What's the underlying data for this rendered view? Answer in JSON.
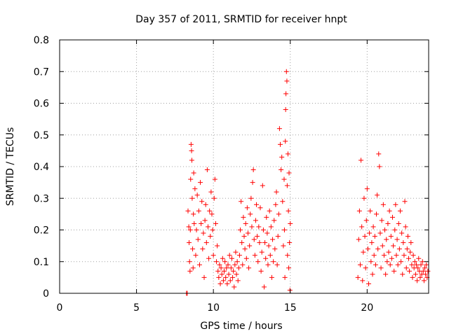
{
  "chart_data": {
    "type": "scatter",
    "title": "Day 357 of 2011, SRMTID for receiver hnpt",
    "xlabel": "GPS time / hours",
    "ylabel": "SRMTID / TECUs",
    "xlim": [
      0,
      24
    ],
    "ylim": [
      0,
      0.8
    ],
    "xticks": [
      0,
      5,
      10,
      15,
      20
    ],
    "xtick_labels": [
      "0",
      "5",
      "10",
      "15",
      "20"
    ],
    "yticks": [
      0,
      0.1,
      0.2,
      0.3,
      0.4,
      0.5,
      0.6,
      0.7,
      0.8
    ],
    "ytick_labels": [
      "0",
      "0.1",
      "0.2",
      "0.3",
      "0.4",
      "0.5",
      "0.6",
      "0.7",
      "0.8"
    ],
    "grid": true,
    "legend": false,
    "marker": "+",
    "color": "#ff0000",
    "series": [
      {
        "points": [
          [
            8.25,
            0.0
          ],
          [
            8.3,
            0.0
          ],
          [
            8.35,
            0.26
          ],
          [
            8.4,
            0.21
          ],
          [
            8.42,
            0.16
          ],
          [
            8.45,
            0.1
          ],
          [
            8.48,
            0.07
          ],
          [
            8.5,
            0.2
          ],
          [
            8.52,
            0.36
          ],
          [
            8.55,
            0.47
          ],
          [
            8.58,
            0.45
          ],
          [
            8.6,
            0.42
          ],
          [
            8.62,
            0.3
          ],
          [
            8.65,
            0.14
          ],
          [
            8.68,
            0.08
          ],
          [
            8.7,
            0.25
          ],
          [
            8.72,
            0.38
          ],
          [
            8.75,
            0.22
          ],
          [
            8.8,
            0.33
          ],
          [
            8.85,
            0.12
          ],
          [
            8.9,
            0.2
          ],
          [
            8.95,
            0.31
          ],
          [
            9.0,
            0.17
          ],
          [
            9.05,
            0.26
          ],
          [
            9.1,
            0.09
          ],
          [
            9.15,
            0.35
          ],
          [
            9.2,
            0.22
          ],
          [
            9.25,
            0.29
          ],
          [
            9.3,
            0.14
          ],
          [
            9.35,
            0.19
          ],
          [
            9.4,
            0.05
          ],
          [
            9.45,
            0.23
          ],
          [
            9.5,
            0.28
          ],
          [
            9.55,
            0.16
          ],
          [
            9.6,
            0.39
          ],
          [
            9.65,
            0.21
          ],
          [
            9.7,
            0.11
          ],
          [
            9.75,
            0.26
          ],
          [
            9.8,
            0.18
          ],
          [
            9.85,
            0.32
          ],
          [
            9.9,
            0.25
          ],
          [
            9.95,
            0.2
          ],
          [
            10.0,
            0.12
          ],
          [
            10.05,
            0.3
          ],
          [
            10.1,
            0.36
          ],
          [
            10.15,
            0.22
          ],
          [
            10.2,
            0.1
          ],
          [
            10.25,
            0.15
          ],
          [
            10.3,
            0.07
          ],
          [
            10.35,
            0.05
          ],
          [
            10.4,
            0.09
          ],
          [
            10.45,
            0.03
          ],
          [
            10.5,
            0.08
          ],
          [
            10.55,
            0.06
          ],
          [
            10.6,
            0.11
          ],
          [
            10.65,
            0.04
          ],
          [
            10.7,
            0.07
          ],
          [
            10.75,
            0.1
          ],
          [
            10.8,
            0.05
          ],
          [
            10.85,
            0.08
          ],
          [
            10.9,
            0.03
          ],
          [
            10.95,
            0.09
          ],
          [
            11.0,
            0.06
          ],
          [
            11.05,
            0.12
          ],
          [
            11.1,
            0.04
          ],
          [
            11.15,
            0.08
          ],
          [
            11.2,
            0.11
          ],
          [
            11.25,
            0.05
          ],
          [
            11.3,
            0.07
          ],
          [
            11.35,
            0.02
          ],
          [
            11.4,
            0.09
          ],
          [
            11.45,
            0.13
          ],
          [
            11.5,
            0.06
          ],
          [
            11.55,
            0.1
          ],
          [
            11.6,
            0.04
          ],
          [
            11.65,
            0.08
          ],
          [
            11.7,
            0.12
          ],
          [
            11.75,
            0.2
          ],
          [
            11.8,
            0.29
          ],
          [
            11.85,
            0.16
          ],
          [
            11.9,
            0.09
          ],
          [
            11.95,
            0.24
          ],
          [
            12.0,
            0.18
          ],
          [
            12.05,
            0.14
          ],
          [
            12.1,
            0.22
          ],
          [
            12.15,
            0.11
          ],
          [
            12.2,
            0.27
          ],
          [
            12.25,
            0.19
          ],
          [
            12.3,
            0.08
          ],
          [
            12.35,
            0.15
          ],
          [
            12.4,
            0.25
          ],
          [
            12.45,
            0.3
          ],
          [
            12.5,
            0.21
          ],
          [
            12.55,
            0.35
          ],
          [
            12.6,
            0.39
          ],
          [
            12.65,
            0.17
          ],
          [
            12.7,
            0.12
          ],
          [
            12.75,
            0.23
          ],
          [
            12.8,
            0.28
          ],
          [
            12.85,
            0.18
          ],
          [
            12.9,
            0.1
          ],
          [
            12.95,
            0.21
          ],
          [
            13.0,
            0.16
          ],
          [
            13.05,
            0.27
          ],
          [
            13.1,
            0.07
          ],
          [
            13.15,
            0.13
          ],
          [
            13.2,
            0.34
          ],
          [
            13.25,
            0.2
          ],
          [
            13.3,
            0.02
          ],
          [
            13.35,
            0.16
          ],
          [
            13.4,
            0.11
          ],
          [
            13.45,
            0.24
          ],
          [
            13.5,
            0.19
          ],
          [
            13.55,
            0.09
          ],
          [
            13.6,
            0.15
          ],
          [
            13.65,
            0.26
          ],
          [
            13.7,
            0.12
          ],
          [
            13.75,
            0.21
          ],
          [
            13.8,
            0.05
          ],
          [
            13.85,
            0.17
          ],
          [
            13.9,
            0.1
          ],
          [
            13.95,
            0.23
          ],
          [
            14.0,
            0.14
          ],
          [
            14.05,
            0.28
          ],
          [
            14.1,
            0.32
          ],
          [
            14.15,
            0.09
          ],
          [
            14.2,
            0.18
          ],
          [
            14.25,
            0.25
          ],
          [
            14.3,
            0.52
          ],
          [
            14.35,
            0.47
          ],
          [
            14.4,
            0.39
          ],
          [
            14.45,
            0.43
          ],
          [
            14.5,
            0.29
          ],
          [
            14.55,
            0.15
          ],
          [
            14.6,
            0.36
          ],
          [
            14.62,
            0.2
          ],
          [
            14.65,
            0.05
          ],
          [
            14.68,
            0.48
          ],
          [
            14.7,
            0.58
          ],
          [
            14.72,
            0.63
          ],
          [
            14.75,
            0.7
          ],
          [
            14.78,
            0.67
          ],
          [
            14.8,
            0.34
          ],
          [
            14.82,
            0.12
          ],
          [
            14.85,
            0.44
          ],
          [
            14.88,
            0.26
          ],
          [
            14.9,
            0.08
          ],
          [
            14.92,
            0.38
          ],
          [
            14.95,
            0.16
          ],
          [
            14.98,
            0.01
          ],
          [
            15.0,
            0.22
          ],
          [
            19.4,
            0.05
          ],
          [
            19.45,
            0.17
          ],
          [
            19.5,
            0.26
          ],
          [
            19.55,
            0.09
          ],
          [
            19.6,
            0.42
          ],
          [
            19.65,
            0.21
          ],
          [
            19.7,
            0.04
          ],
          [
            19.75,
            0.13
          ],
          [
            19.8,
            0.3
          ],
          [
            19.85,
            0.18
          ],
          [
            19.9,
            0.08
          ],
          [
            19.95,
            0.23
          ],
          [
            20.0,
            0.33
          ],
          [
            20.05,
            0.14
          ],
          [
            20.1,
            0.03
          ],
          [
            20.15,
            0.19
          ],
          [
            20.2,
            0.26
          ],
          [
            20.25,
            0.1
          ],
          [
            20.3,
            0.16
          ],
          [
            20.35,
            0.06
          ],
          [
            20.4,
            0.21
          ],
          [
            20.45,
            0.12
          ],
          [
            20.5,
            0.18
          ],
          [
            20.55,
            0.09
          ],
          [
            20.6,
            0.25
          ],
          [
            20.65,
            0.31
          ],
          [
            20.7,
            0.14
          ],
          [
            20.75,
            0.44
          ],
          [
            20.8,
            0.4
          ],
          [
            20.85,
            0.19
          ],
          [
            20.9,
            0.08
          ],
          [
            20.95,
            0.23
          ],
          [
            21.0,
            0.15
          ],
          [
            21.05,
            0.28
          ],
          [
            21.1,
            0.12
          ],
          [
            21.15,
            0.2
          ],
          [
            21.2,
            0.06
          ],
          [
            21.25,
            0.17
          ],
          [
            21.3,
            0.1
          ],
          [
            21.35,
            0.22
          ],
          [
            21.4,
            0.13
          ],
          [
            21.45,
            0.26
          ],
          [
            21.5,
            0.09
          ],
          [
            21.55,
            0.18
          ],
          [
            21.6,
            0.11
          ],
          [
            21.65,
            0.24
          ],
          [
            21.7,
            0.15
          ],
          [
            21.75,
            0.07
          ],
          [
            21.8,
            0.2
          ],
          [
            21.85,
            0.28
          ],
          [
            21.9,
            0.12
          ],
          [
            21.95,
            0.17
          ],
          [
            22.0,
            0.09
          ],
          [
            22.05,
            0.22
          ],
          [
            22.1,
            0.14
          ],
          [
            22.15,
            0.26
          ],
          [
            22.2,
            0.1
          ],
          [
            22.25,
            0.19
          ],
          [
            22.3,
            0.06
          ],
          [
            22.35,
            0.16
          ],
          [
            22.4,
            0.12
          ],
          [
            22.45,
            0.29
          ],
          [
            22.5,
            0.21
          ],
          [
            22.55,
            0.08
          ],
          [
            22.6,
            0.14
          ],
          [
            22.65,
            0.18
          ],
          [
            22.7,
            0.11
          ],
          [
            22.75,
            0.07
          ],
          [
            22.8,
            0.13
          ],
          [
            22.85,
            0.16
          ],
          [
            22.9,
            0.09
          ],
          [
            22.95,
            0.05
          ],
          [
            23.0,
            0.12
          ],
          [
            23.05,
            0.08
          ],
          [
            23.1,
            0.1
          ],
          [
            23.15,
            0.06
          ],
          [
            23.2,
            0.09
          ],
          [
            23.25,
            0.04
          ],
          [
            23.3,
            0.08
          ],
          [
            23.35,
            0.11
          ],
          [
            23.4,
            0.07
          ],
          [
            23.45,
            0.05
          ],
          [
            23.5,
            0.09
          ],
          [
            23.55,
            0.06
          ],
          [
            23.6,
            0.1
          ],
          [
            23.65,
            0.07
          ],
          [
            23.7,
            0.04
          ],
          [
            23.75,
            0.08
          ],
          [
            23.8,
            0.06
          ],
          [
            23.85,
            0.09
          ],
          [
            23.9,
            0.05
          ],
          [
            23.95,
            0.07
          ]
        ]
      }
    ]
  }
}
